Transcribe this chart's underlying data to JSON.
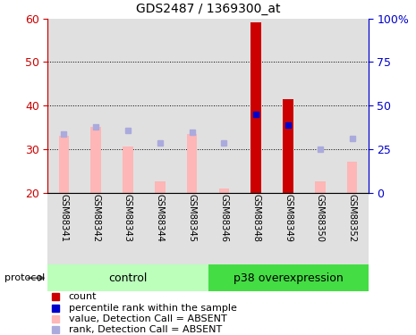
{
  "title": "GDS2487 / 1369300_at",
  "samples": [
    "GSM88341",
    "GSM88342",
    "GSM88343",
    "GSM88344",
    "GSM88345",
    "GSM88346",
    "GSM88348",
    "GSM88349",
    "GSM88350",
    "GSM88352"
  ],
  "ylim_left": [
    20,
    60
  ],
  "ylim_right": [
    0,
    100
  ],
  "yticks_left": [
    20,
    30,
    40,
    50,
    60
  ],
  "yticks_right": [
    0,
    25,
    50,
    75,
    100
  ],
  "ytick_labels_right": [
    "0",
    "25",
    "50",
    "75",
    "100%"
  ],
  "bar_bottom": 20,
  "pink_values": [
    33.0,
    35.0,
    30.5,
    22.5,
    33.5,
    21.0,
    59.0,
    41.5,
    22.5,
    27.0
  ],
  "blue_squares_y": [
    33.5,
    35.2,
    34.2,
    31.5,
    33.8,
    31.5,
    38.0,
    35.5,
    30.0,
    32.5
  ],
  "red_bars": [
    false,
    false,
    false,
    false,
    false,
    false,
    true,
    true,
    false,
    false
  ],
  "blue_filled": [
    false,
    false,
    false,
    false,
    false,
    false,
    true,
    true,
    false,
    false
  ],
  "pink_color": "#FFB6B6",
  "red_bar_color": "#CC0000",
  "blue_sq_absent": "#AAAADD",
  "blue_sq_present": "#0000CC",
  "col_bg": "#E0E0E0",
  "group_bg_control": "#BBFFBB",
  "group_bg_p38": "#44DD44",
  "left_axis_color": "#CC0000",
  "right_axis_color": "#0000CC",
  "legend_items": [
    {
      "label": "count",
      "color": "#CC0000"
    },
    {
      "label": "percentile rank within the sample",
      "color": "#0000CC"
    },
    {
      "label": "value, Detection Call = ABSENT",
      "color": "#FFB6B6"
    },
    {
      "label": "rank, Detection Call = ABSENT",
      "color": "#AAAADD"
    }
  ]
}
